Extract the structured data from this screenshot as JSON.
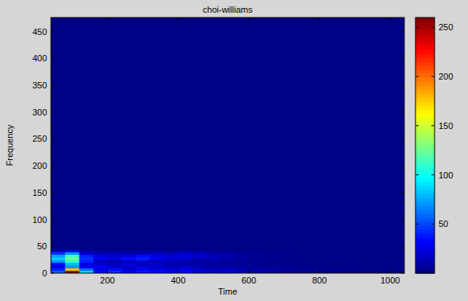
{
  "chart_data": {
    "type": "heatmap",
    "title": "choi-williams",
    "xlabel": "Time",
    "ylabel": "Frequency",
    "xlim": [
      40,
      1040
    ],
    "ylim": [
      0,
      476
    ],
    "xticks": [
      200,
      400,
      600,
      800,
      1000
    ],
    "yticks": [
      0,
      50,
      100,
      150,
      200,
      250,
      300,
      350,
      400,
      450
    ],
    "x_edges": [
      40,
      80,
      120,
      160,
      200,
      240,
      280,
      320,
      360,
      400,
      440,
      480,
      520,
      560,
      600,
      640,
      680,
      720,
      760,
      800,
      840,
      880,
      920,
      960,
      1000,
      1040
    ],
    "y_edges": [
      0,
      5,
      10,
      15,
      20,
      25,
      30,
      35,
      40,
      45,
      476
    ],
    "cells": [
      [
        60,
        256,
        90,
        35,
        45,
        30,
        40,
        35,
        30,
        35,
        25,
        20,
        22,
        15,
        12,
        10,
        8,
        6,
        5,
        4,
        3,
        3,
        2,
        2,
        2
      ],
      [
        40,
        180,
        60,
        25,
        35,
        22,
        30,
        25,
        22,
        25,
        18,
        15,
        16,
        10,
        9,
        8,
        6,
        5,
        4,
        3,
        3,
        2,
        2,
        2,
        2
      ],
      [
        25,
        70,
        30,
        30,
        20,
        18,
        22,
        18,
        15,
        18,
        12,
        10,
        10,
        8,
        6,
        5,
        4,
        4,
        3,
        3,
        2,
        2,
        2,
        2,
        2
      ],
      [
        35,
        80,
        25,
        20,
        15,
        25,
        15,
        20,
        12,
        10,
        10,
        8,
        7,
        6,
        5,
        4,
        3,
        3,
        2,
        2,
        2,
        2,
        2,
        2,
        2
      ],
      [
        70,
        110,
        40,
        15,
        12,
        15,
        22,
        12,
        15,
        12,
        8,
        10,
        6,
        5,
        4,
        4,
        3,
        2,
        2,
        2,
        2,
        2,
        2,
        2,
        2
      ],
      [
        85,
        125,
        45,
        30,
        25,
        35,
        40,
        25,
        20,
        18,
        15,
        12,
        10,
        6,
        5,
        4,
        3,
        3,
        2,
        2,
        2,
        2,
        2,
        2,
        2
      ],
      [
        75,
        115,
        40,
        25,
        20,
        25,
        35,
        28,
        22,
        25,
        20,
        15,
        12,
        8,
        6,
        5,
        4,
        3,
        2,
        2,
        2,
        2,
        2,
        2,
        2
      ],
      [
        45,
        70,
        20,
        12,
        15,
        10,
        12,
        15,
        12,
        20,
        15,
        10,
        8,
        6,
        4,
        3,
        3,
        2,
        2,
        2,
        2,
        2,
        2,
        2,
        2
      ],
      [
        12,
        18,
        8,
        6,
        5,
        6,
        5,
        6,
        5,
        6,
        5,
        4,
        4,
        3,
        3,
        2,
        2,
        2,
        2,
        2,
        2,
        2,
        2,
        2,
        2
      ],
      [
        2,
        2,
        2,
        2,
        2,
        2,
        2,
        2,
        2,
        2,
        2,
        2,
        2,
        2,
        2,
        2,
        2,
        2,
        2,
        2,
        2,
        2,
        2,
        2,
        2
      ]
    ],
    "colorbar_lim": [
      0,
      260
    ],
    "colorbar_ticks": [
      50,
      100,
      150,
      200,
      250
    ]
  }
}
